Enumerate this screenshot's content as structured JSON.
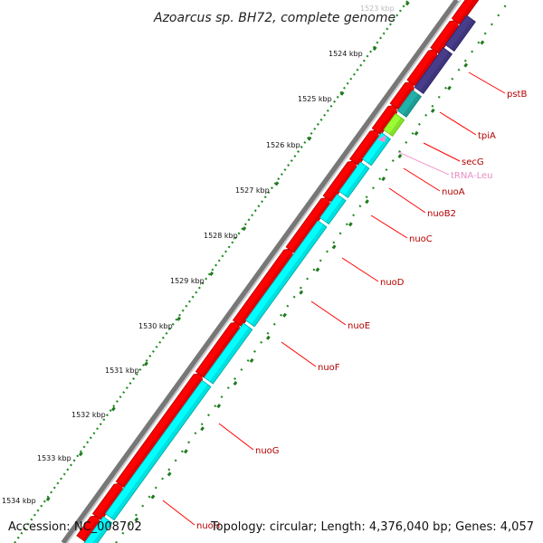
{
  "title": "Azoarcus sp. BH72, complete genome",
  "accession": "Accession: NC_008702",
  "info": "Topology: circular; Length: 4,376,040 bp; Genes: 4,057",
  "colors": {
    "backbone": "#888888",
    "forward_gene": "#ff0000",
    "reverse_gene": "#00ffff",
    "other_gene": "#483d8b",
    "teal_gene": "#20b2aa",
    "green_gene": "#99ff33",
    "trna": "#ff88cc",
    "tick": "#228b22",
    "label": "#b40000"
  },
  "kbp_labels": [
    "1523 kbp",
    "1524 kbp",
    "1525 kbp",
    "1526 kbp",
    "1527 kbp",
    "1528 kbp",
    "1529 kbp",
    "1530 kbp",
    "1531 kbp",
    "1532 kbp",
    "1533 kbp",
    "1534 kbp"
  ],
  "genes": [
    {
      "name": "pstB"
    },
    {
      "name": "tpiA"
    },
    {
      "name": "secG"
    },
    {
      "name": "tRNA-Leu"
    },
    {
      "name": "nuoA"
    },
    {
      "name": "nuoB2"
    },
    {
      "name": "nuoC"
    },
    {
      "name": "nuoD"
    },
    {
      "name": "nuoE"
    },
    {
      "name": "nuoF"
    },
    {
      "name": "nuoG"
    },
    {
      "name": "nuoH"
    }
  ]
}
